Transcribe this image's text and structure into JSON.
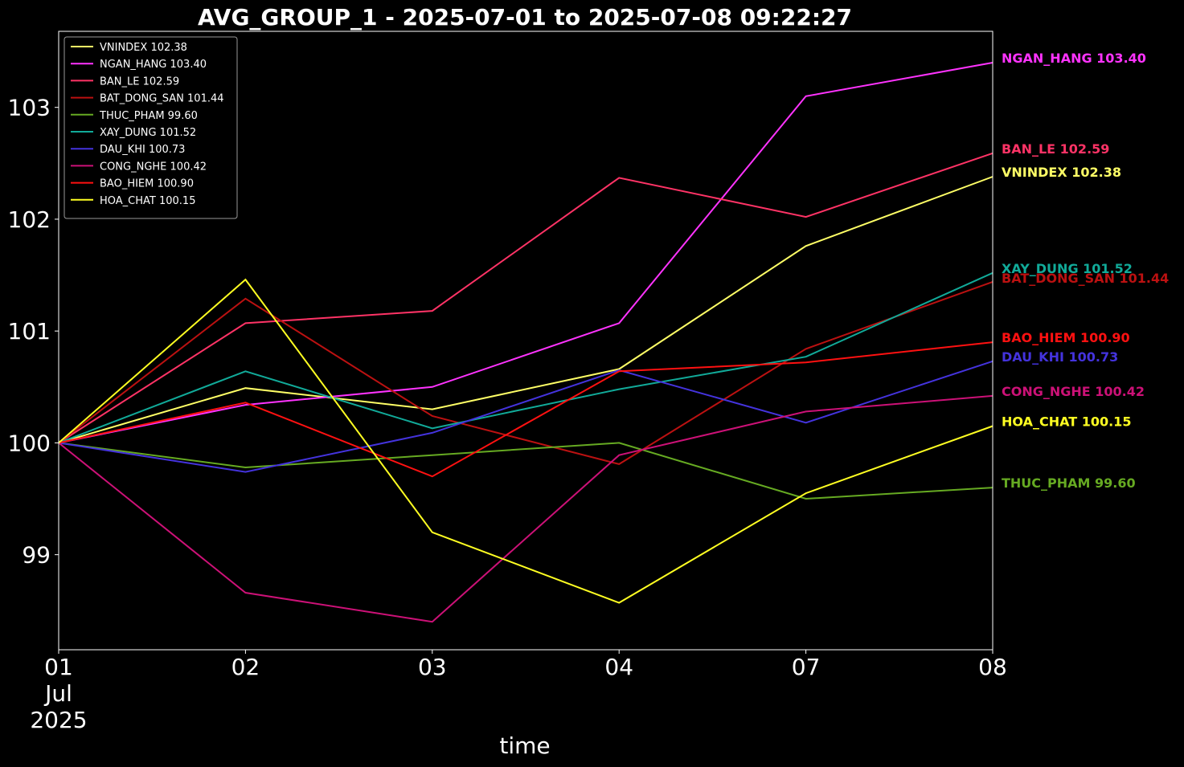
{
  "chart_data": {
    "type": "line",
    "title": "AVG_GROUP_1 - 2025-07-01 to 2025-07-08 09:22:27",
    "xlabel": "time",
    "ylabel": "",
    "x": [
      "2025-07-01",
      "2025-07-02",
      "2025-07-03",
      "2025-07-04",
      "2025-07-07",
      "2025-07-08"
    ],
    "x_tick_labels": [
      "01\nJul\n2025",
      "02",
      "03",
      "04",
      "07",
      "08"
    ],
    "y_ticks": [
      99,
      100,
      101,
      102,
      103
    ],
    "ylim": [
      98.15,
      103.68
    ],
    "grid": false,
    "legend_placement": "upper-left",
    "series": [
      {
        "name": "VNINDEX",
        "legend": "VNINDEX 102.38",
        "end_label": "VNINDEX 102.38",
        "color": "#ffff66",
        "values": [
          100.0,
          100.49,
          100.3,
          100.66,
          101.76,
          102.38
        ]
      },
      {
        "name": "NGAN_HANG",
        "legend": "NGAN_HANG 103.40",
        "end_label": "NGAN_HANG 103.40",
        "color": "#ff33ff",
        "values": [
          100.0,
          100.34,
          100.5,
          101.07,
          103.1,
          103.4
        ]
      },
      {
        "name": "BAN_LE",
        "legend": "BAN_LE 102.59",
        "end_label": "BAN_LE 102.59",
        "color": "#ff3366",
        "values": [
          100.0,
          101.07,
          101.18,
          102.37,
          102.02,
          102.59
        ]
      },
      {
        "name": "BAT_DONG_SAN",
        "legend": "BAT_DONG_SAN 101.44",
        "end_label": "BAT_DONG_SAN 101.44",
        "color": "#bb1111",
        "values": [
          100.0,
          101.29,
          100.24,
          99.81,
          100.84,
          101.44
        ]
      },
      {
        "name": "THUC_PHAM",
        "legend": "THUC_PHAM 99.60",
        "end_label": "THUC_PHAM 99.60",
        "color": "#66aa22",
        "values": [
          100.0,
          99.78,
          99.89,
          100.0,
          99.5,
          99.6
        ]
      },
      {
        "name": "XAY_DUNG",
        "legend": "XAY_DUNG 101.52",
        "end_label": "XAY_DUNG 101.52",
        "color": "#11aa99",
        "values": [
          100.0,
          100.64,
          100.13,
          100.48,
          100.77,
          101.52
        ]
      },
      {
        "name": "DAU_KHI",
        "legend": "DAU_KHI 100.73",
        "end_label": "DAU_KHI 100.73",
        "color": "#4433dd",
        "values": [
          100.0,
          99.74,
          100.09,
          100.65,
          100.18,
          100.73
        ]
      },
      {
        "name": "CONG_NGHE",
        "legend": "CONG_NGHE 100.42",
        "end_label": "CONG_NGHE 100.42",
        "color": "#cc1177",
        "values": [
          100.0,
          98.66,
          98.4,
          99.89,
          100.28,
          100.42
        ]
      },
      {
        "name": "BAO_HIEM",
        "legend": "BAO_HIEM 100.90",
        "end_label": "BAO_HIEM 100.90",
        "color": "#ff1111",
        "values": [
          100.0,
          100.36,
          99.7,
          100.64,
          100.72,
          100.9
        ]
      },
      {
        "name": "HOA_CHAT",
        "legend": "HOA_CHAT 100.15",
        "end_label": "HOA_CHAT 100.15",
        "color": "#ffff22",
        "values": [
          100.0,
          101.46,
          99.2,
          98.57,
          99.55,
          100.15
        ]
      }
    ]
  }
}
